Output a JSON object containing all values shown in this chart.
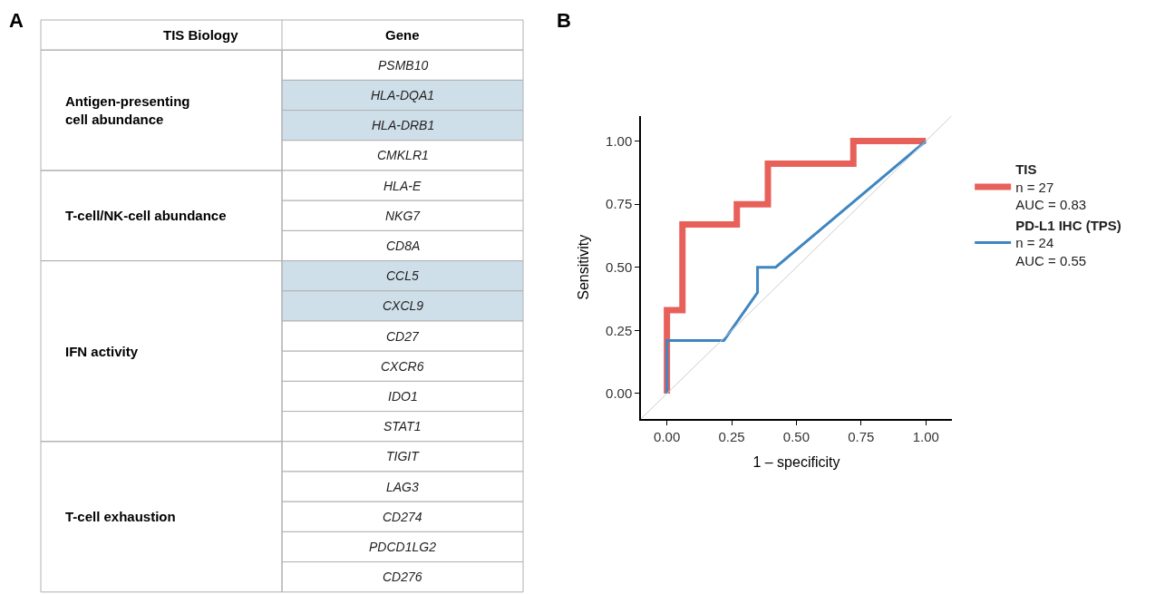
{
  "chart_data": [
    {
      "type": "other",
      "title": "A",
      "categories": [
        "TIS Biology",
        "Gene"
      ],
      "cell_labels": [
        [
          "Antigen-presenting\ncell abundance",
          "PSMB10"
        ],
        [
          null,
          "HLA-DQA1"
        ],
        [
          null,
          "HLA-DRB1"
        ],
        [
          null,
          "CMKLR1"
        ],
        [
          "T-cell/NK-cell abundance",
          "HLA-E"
        ],
        [
          null,
          "NKG7"
        ],
        [
          null,
          "CD8A"
        ],
        [
          "IFN activity",
          "CCL5"
        ],
        [
          null,
          "CXCL9"
        ],
        [
          null,
          "CD27"
        ],
        [
          null,
          "CXCR6"
        ],
        [
          null,
          "IDO1"
        ],
        [
          null,
          "STAT1"
        ],
        [
          "T-cell exhaustion",
          "TIGIT"
        ],
        [
          null,
          "LAG3"
        ],
        [
          null,
          "CD274"
        ],
        [
          null,
          "PDCD1LG2"
        ],
        [
          null,
          "CD276"
        ]
      ],
      "colors": [
        "#ffffff",
        "#cfdfea",
        "#cfdfea",
        "#ffffff",
        "#ffffff",
        "#ffffff",
        "#ffffff",
        "#cfdfea",
        "#cfdfea",
        "#ffffff",
        "#ffffff",
        "#ffffff",
        "#ffffff",
        "#ffffff",
        "#ffffff",
        "#ffffff",
        "#ffffff",
        "#ffffff"
      ]
    },
    {
      "type": "line",
      "title": "B",
      "xlabel": "1 – specificity",
      "ylabel": "Sensitivity",
      "xlim": [
        -0.1,
        1.1
      ],
      "ylim": [
        -0.1,
        1.1
      ],
      "xticks": [
        {
          "value": 0,
          "label": "0.00"
        },
        {
          "value": 0.25,
          "label": "0.25"
        },
        {
          "value": 0.5,
          "label": "0.50"
        },
        {
          "value": 0.75,
          "label": "0.75"
        },
        {
          "value": 1,
          "label": "1.00"
        }
      ],
      "yticks": [
        {
          "value": 0,
          "label": "0.00"
        },
        {
          "value": 0.25,
          "label": "0.25"
        },
        {
          "value": 0.5,
          "label": "0.50"
        },
        {
          "value": 0.75,
          "label": "0.75"
        },
        {
          "value": 1,
          "label": "1.00"
        }
      ],
      "legend": "right",
      "marker": "none",
      "annotations": [
        "n = 27\nAUC = 0.83",
        "n = 24\nAUC = 0.55"
      ],
      "series": [
        {
          "name": "TIS",
          "color": "#e8605a",
          "x": [
            0,
            0,
            0.06,
            0.06,
            0.27,
            0.27,
            0.39,
            0.39,
            0.72,
            0.72,
            1
          ],
          "values": [
            0,
            0.33,
            0.33,
            0.67,
            0.67,
            0.75,
            0.75,
            0.91,
            0.91,
            1,
            1
          ]
        },
        {
          "name": "PD-L1 IHC (TPS)",
          "color": "#3f86c1",
          "x": [
            0,
            0,
            0.22,
            0.35,
            0.35,
            0.42,
            1
          ],
          "values": [
            0,
            0.21,
            0.21,
            0.4,
            0.5,
            0.5,
            1
          ]
        },
        {
          "color": "#cccccc",
          "x": [
            -0.1,
            1.1
          ],
          "values": [
            -0.1,
            1.1
          ]
        }
      ]
    }
  ]
}
